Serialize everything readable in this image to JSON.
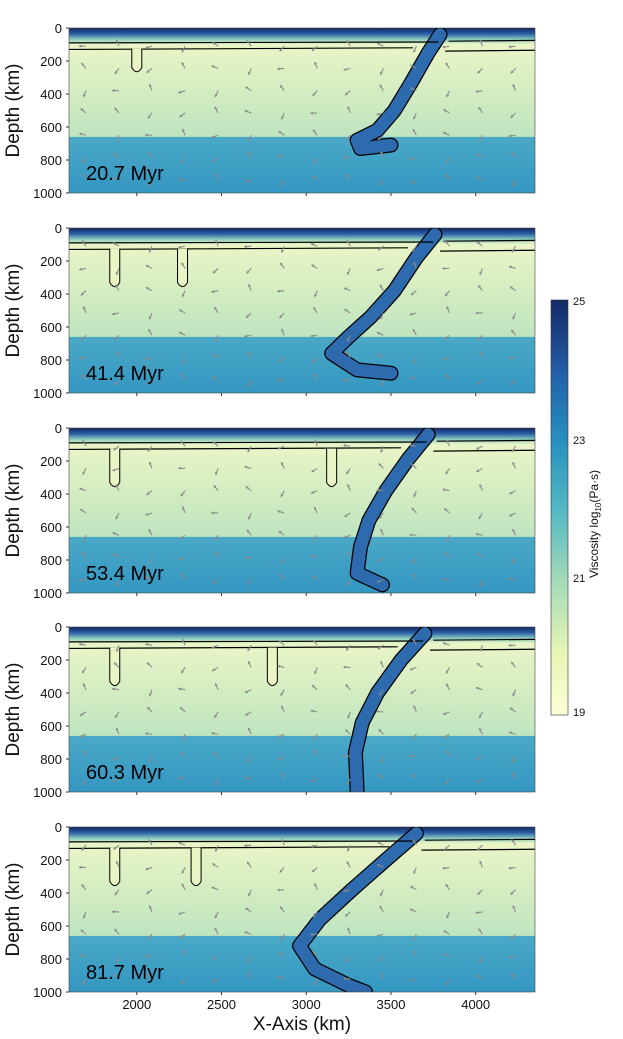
{
  "chart_data": {
    "type": "heatmap",
    "title": "",
    "xlabel": "X-Axis (km)",
    "ylabel": "Depth (km)",
    "xlim": [
      1600,
      4350
    ],
    "ylim": [
      1000,
      0
    ],
    "xticks": [
      2000,
      2500,
      3000,
      3500,
      4000
    ],
    "yticks": [
      0,
      200,
      400,
      600,
      800,
      1000
    ],
    "panels": [
      {
        "time_label": "20.7 Myr"
      },
      {
        "time_label": "41.4 Myr"
      },
      {
        "time_label": "53.4 Myr"
      },
      {
        "time_label": "60.3 Myr"
      },
      {
        "time_label": "81.7 Myr"
      }
    ],
    "colorbar": {
      "label_main": "Viscosity log",
      "label_sub": "10",
      "label_unit": "(Pa·s)",
      "range": [
        19,
        25
      ],
      "ticks": [
        19,
        21,
        23,
        25
      ],
      "colors": [
        "#fdfed8",
        "#e3f2b0",
        "#9fd8b9",
        "#4fb6c4",
        "#2b8fc0",
        "#2460a7",
        "#1f3b8c",
        "#142966"
      ]
    }
  }
}
